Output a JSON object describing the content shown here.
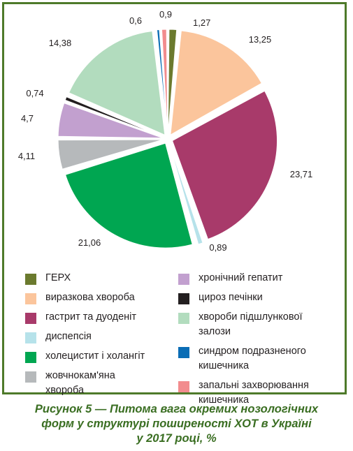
{
  "chart_data": {
    "type": "pie",
    "unit": "%",
    "slices": [
      {
        "name": "ГЕРХ",
        "value": 1.27,
        "label": "1,27",
        "color": "#6b7a2e"
      },
      {
        "name": "виразкова хвороба",
        "value": 13.25,
        "label": "13,25",
        "color": "#fbc59c"
      },
      {
        "name": "гастрит та дуоденіт",
        "value": 23.71,
        "label": "23,71",
        "color": "#a83a6a"
      },
      {
        "name": "диспепсія",
        "value": 0.89,
        "label": "0,89",
        "color": "#b6e2ea"
      },
      {
        "name": "холецистит і холангіт",
        "value": 21.06,
        "label": "21,06",
        "color": "#00a651"
      },
      {
        "name": "жовчнокам'яна хвороба",
        "value": 4.11,
        "label": "4,11",
        "color": "#b6b9bb"
      },
      {
        "name": "хронічний гепатит",
        "value": 4.7,
        "label": "4,7",
        "color": "#c2a0cf"
      },
      {
        "name": "цироз печінки",
        "value": 0.74,
        "label": "0,74",
        "color": "#231f20"
      },
      {
        "name": "хвороби підшлункової залози",
        "value": 14.38,
        "label": "14,38",
        "color": "#b2dcbe"
      },
      {
        "name": "синдром подразненого кишечника",
        "value": 0.6,
        "label": "0,6",
        "color": "#0a6db5"
      },
      {
        "name": "запальні захворювання кишечника",
        "value": 0.9,
        "label": "0,9",
        "color": "#f28c8e"
      }
    ]
  },
  "legend": {
    "left": [
      {
        "lines": [
          "ГЕРХ"
        ],
        "color": "#6b7a2e"
      },
      {
        "lines": [
          "виразкова хвороба"
        ],
        "color": "#fbc59c"
      },
      {
        "lines": [
          "гастрит та дуоденіт"
        ],
        "color": "#a83a6a"
      },
      {
        "lines": [
          "диспепсія"
        ],
        "color": "#b6e2ea"
      },
      {
        "lines": [
          "холецистит і холангіт"
        ],
        "color": "#00a651"
      },
      {
        "lines": [
          "жовчнокам'яна",
          "хвороба"
        ],
        "color": "#b6b9bb"
      }
    ],
    "right": [
      {
        "lines": [
          "хронічний гепатит"
        ],
        "color": "#c2a0cf"
      },
      {
        "lines": [
          "цироз печінки"
        ],
        "color": "#231f20"
      },
      {
        "lines": [
          "хвороби підшлункової",
          "залози"
        ],
        "color": "#b2dcbe"
      },
      {
        "lines": [
          "синдром подразненого",
          "кишечника"
        ],
        "color": "#0a6db5"
      },
      {
        "lines": [
          "запальні захворювання",
          "кишечника"
        ],
        "color": "#f28c8e"
      }
    ]
  },
  "caption": {
    "line1": "Рисунок 5 — Питома вага окремих нозологічних",
    "line2": "форм у структурі поширеності ХОТ в Україні",
    "line3": "у 2017 році, %"
  }
}
